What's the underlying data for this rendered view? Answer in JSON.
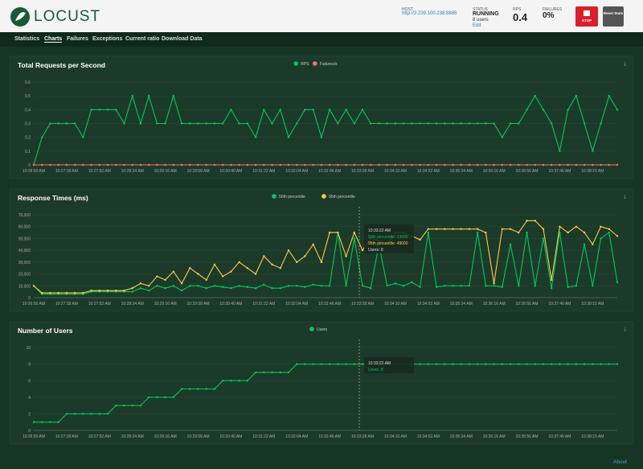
{
  "header": {
    "logo": "LOCUST",
    "host_label": "HOST",
    "host": "http://3.239.100.238:8885",
    "status_label": "STATUS",
    "status": "RUNNING",
    "users": "8 users",
    "edit": "Edit",
    "rps_label": "RPS",
    "rps": 0.4,
    "failures_label": "FAILURES",
    "failures": "0%",
    "stop": "STOP",
    "reset": "Reset Stats"
  },
  "nav": [
    "Statistics",
    "Charts",
    "Failures",
    "Exceptions",
    "Current ratio",
    "Download Data"
  ],
  "footer": "About",
  "chart_data": [
    {
      "type": "line",
      "title": "Total Requests per Second",
      "categories": [
        "10:26:50 AM",
        null,
        null,
        null,
        "10:27:18 AM",
        null,
        null,
        null,
        "10:27:52 AM",
        null,
        null,
        null,
        "10:28:34 AM",
        null,
        null,
        null,
        "10:29:16 AM",
        null,
        null,
        null,
        "10:29:58 AM",
        null,
        null,
        null,
        "10:30:40 AM",
        null,
        null,
        null,
        "10:31:22 AM",
        null,
        null,
        null,
        "10:32:04 AM",
        null,
        null,
        null,
        "10:32:46 AM",
        null,
        null,
        null,
        "10:33:28 AM",
        null,
        null,
        null,
        "10:34:10 AM",
        null,
        null,
        null,
        "10:34:52 AM",
        null,
        null,
        null,
        "10:35:34 AM",
        null,
        null,
        null,
        "10:36:16 AM",
        null,
        null,
        null,
        "10:36:56 AM",
        null,
        null,
        null,
        "10:37:40 AM",
        null,
        null,
        null,
        "10:38:15 AM",
        null,
        null,
        null
      ],
      "series": [
        {
          "name": "RPS",
          "color": "#00ca5a",
          "values": [
            0,
            0.2,
            0.3,
            0.3,
            0.3,
            0.3,
            0.2,
            0.4,
            0.4,
            0.4,
            0.4,
            0.3,
            0.5,
            0.3,
            0.5,
            0.3,
            0.3,
            0.5,
            0.3,
            0.3,
            0.3,
            0.3,
            0.3,
            0.3,
            0.4,
            0.3,
            0.3,
            0.2,
            0.4,
            0.3,
            0.4,
            0.2,
            0.3,
            0.4,
            0.4,
            0.2,
            0.4,
            0.3,
            0.4,
            0.3,
            0.4,
            0.3,
            0.3,
            0.3,
            0.3,
            0.3,
            0.3,
            0.3,
            0.3,
            0.3,
            0.3,
            0.3,
            0.3,
            0.3,
            0.3,
            0.3,
            0.3,
            0.2,
            0.3,
            0.3,
            0.4,
            0.5,
            0.4,
            0.3,
            0.1,
            0.4,
            0.5,
            0.3,
            0.1,
            0.3,
            0.5,
            0.4
          ]
        },
        {
          "name": "Failures/s",
          "color": "#ff6d6d",
          "values": [
            0,
            0,
            0,
            0,
            0,
            0,
            0,
            0,
            0,
            0,
            0,
            0,
            0,
            0,
            0,
            0,
            0,
            0,
            0,
            0,
            0,
            0,
            0,
            0,
            0,
            0,
            0,
            0,
            0,
            0,
            0,
            0,
            0,
            0,
            0,
            0,
            0,
            0,
            0,
            0,
            0,
            0,
            0,
            0,
            0,
            0,
            0,
            0,
            0,
            0,
            0,
            0,
            0,
            0,
            0,
            0,
            0,
            0,
            0,
            0,
            0,
            0,
            0,
            0,
            0,
            0,
            0,
            0,
            0,
            0,
            0,
            0
          ]
        }
      ],
      "ylim": [
        0,
        0.6
      ],
      "yticks": [
        0,
        0.1,
        0.2,
        0.3,
        0.4,
        0.5,
        0.6
      ]
    },
    {
      "type": "line",
      "title": "Response Times (ms)",
      "categories": [
        "10:26:50 AM",
        null,
        null,
        null,
        "10:27:18 AM",
        null,
        null,
        null,
        "10:27:52 AM",
        null,
        null,
        null,
        "10:28:34 AM",
        null,
        null,
        null,
        "10:29:16 AM",
        null,
        null,
        null,
        "10:29:58 AM",
        null,
        null,
        null,
        "10:30:40 AM",
        null,
        null,
        null,
        "10:31:22 AM",
        null,
        null,
        null,
        "10:32:04 AM",
        null,
        null,
        null,
        "10:32:46 AM",
        null,
        null,
        null,
        "10:33:28 AM",
        null,
        null,
        null,
        "10:34:10 AM",
        null,
        null,
        null,
        "10:34:52 AM",
        null,
        null,
        null,
        "10:35:34 AM",
        null,
        null,
        null,
        "10:36:16 AM",
        null,
        null,
        null,
        "10:36:56 AM",
        null,
        null,
        null,
        "10:37:40 AM",
        null,
        null,
        null,
        "10:38:15 AM",
        null,
        null,
        null
      ],
      "series": [
        {
          "name": "50th percentile",
          "color": "#00ca5a",
          "values": [
            10000,
            3000,
            3000,
            3000,
            3000,
            3000,
            3000,
            5000,
            5000,
            5000,
            5000,
            5000,
            5000,
            8000,
            6000,
            10000,
            8000,
            10000,
            6000,
            10000,
            10000,
            8000,
            10000,
            9000,
            8000,
            10000,
            9000,
            8000,
            11000,
            8000,
            8000,
            10000,
            10000,
            9000,
            11000,
            10000,
            10000,
            55000,
            10000,
            50000,
            10000,
            8000,
            45000,
            10000,
            12000,
            10000,
            13000,
            9000,
            55000,
            9000,
            10000,
            10000,
            10000,
            10000,
            55000,
            10000,
            10000,
            9000,
            45000,
            10000,
            55000,
            10000,
            50000,
            8000,
            55000,
            9000,
            10000,
            45000,
            10000,
            50000,
            55000,
            13000
          ]
        },
        {
          "name": "95th percentile",
          "color": "#ffca48",
          "values": [
            10000,
            4000,
            4000,
            4000,
            4000,
            4000,
            4000,
            6000,
            6000,
            6000,
            6000,
            6000,
            8000,
            12000,
            10000,
            18000,
            15000,
            22000,
            12000,
            25000,
            20000,
            15000,
            28000,
            18000,
            22000,
            30000,
            25000,
            20000,
            35000,
            28000,
            25000,
            40000,
            30000,
            35000,
            45000,
            30000,
            55000,
            55000,
            35000,
            55000,
            40000,
            50000,
            48000,
            45000,
            55000,
            55000,
            52000,
            49000,
            58000,
            58000,
            58000,
            58000,
            58000,
            58000,
            58000,
            55000,
            12000,
            58000,
            58000,
            55000,
            65000,
            65000,
            58000,
            15000,
            60000,
            55000,
            60000,
            55000,
            45000,
            60000,
            58000,
            52000
          ]
        }
      ],
      "ylim": [
        0,
        70000
      ],
      "yticks": [
        0,
        {
          "value": 10000,
          "label": "10,000"
        },
        {
          "value": 20000,
          "label": "20,000"
        },
        {
          "value": 30000,
          "label": "30,000"
        },
        {
          "value": 40000,
          "label": "40,000"
        },
        {
          "value": 50000,
          "label": "50,000"
        },
        {
          "value": 60000,
          "label": "60,000"
        },
        {
          "value": 70000,
          "label": "70,000"
        }
      ],
      "tooltip": {
        "time": "10:33:22 AM",
        "lines": [
          "50th percentile: 13000",
          "95th percentile: 49000",
          "Users: 8"
        ]
      }
    },
    {
      "type": "line",
      "title": "Number of Users",
      "categories": [
        "10:26:50 AM",
        null,
        null,
        null,
        "10:27:18 AM",
        null,
        null,
        null,
        "10:27:52 AM",
        null,
        null,
        null,
        "10:28:34 AM",
        null,
        null,
        null,
        "10:29:16 AM",
        null,
        null,
        null,
        "10:29:58 AM",
        null,
        null,
        null,
        "10:30:40 AM",
        null,
        null,
        null,
        "10:31:22 AM",
        null,
        null,
        null,
        "10:32:04 AM",
        null,
        null,
        null,
        "10:32:46 AM",
        null,
        null,
        null,
        "10:33:28 AM",
        null,
        null,
        null,
        "10:34:10 AM",
        null,
        null,
        null,
        "10:34:52 AM",
        null,
        null,
        null,
        "10:35:34 AM",
        null,
        null,
        null,
        "10:36:16 AM",
        null,
        null,
        null,
        "10:36:56 AM",
        null,
        null,
        null,
        "10:37:40 AM",
        null,
        null,
        null,
        "10:38:15 AM",
        null,
        null,
        null
      ],
      "series": [
        {
          "name": "Users",
          "color": "#00ca5a",
          "values": [
            1,
            1,
            1,
            1,
            2,
            2,
            2,
            2,
            2,
            2,
            3,
            3,
            3,
            3,
            4,
            4,
            4,
            4,
            5,
            5,
            5,
            5,
            5,
            6,
            6,
            6,
            6,
            7,
            7,
            7,
            7,
            7,
            8,
            8,
            8,
            8,
            8,
            8,
            8,
            8,
            8,
            8,
            8,
            8,
            8,
            8,
            8,
            8,
            8,
            8,
            8,
            8,
            8,
            8,
            8,
            8,
            8,
            8,
            8,
            8,
            8,
            8,
            8,
            8,
            8,
            8,
            8,
            8,
            8,
            8,
            8,
            8
          ]
        }
      ],
      "ylim": [
        0,
        10
      ],
      "yticks": [
        0,
        2,
        4,
        6,
        8,
        10
      ],
      "tooltip": {
        "time": "10:33:22 AM",
        "lines": [
          "Users: 8"
        ]
      }
    }
  ]
}
